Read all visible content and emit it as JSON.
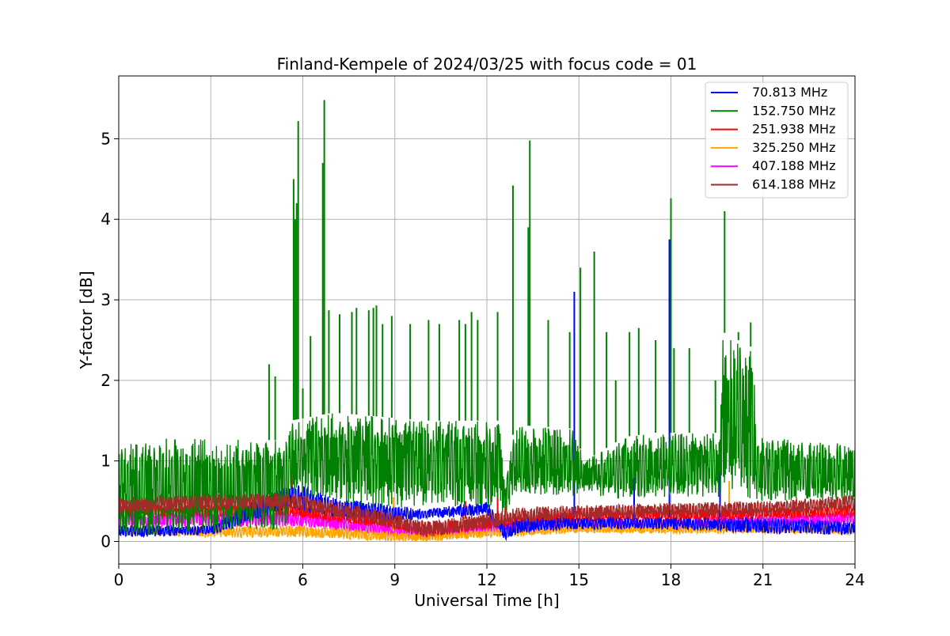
{
  "chart_data": {
    "type": "line",
    "title": "Finland-Kempele of 2024/03/25 with focus code = 01",
    "xlabel": "Universal Time [h]",
    "ylabel": "Y-factor [dB]",
    "xlim": [
      0,
      24
    ],
    "ylim": [
      -0.28,
      5.78
    ],
    "xticks": [
      0,
      3,
      6,
      9,
      12,
      15,
      18,
      21,
      24
    ],
    "yticks": [
      0,
      1,
      2,
      3,
      4,
      5
    ],
    "grid": true,
    "legend_position": "top-right",
    "series": [
      {
        "name": " 70.813 MHz",
        "color": "#0000ff",
        "envelope": [
          [
            0,
            0.05,
            0.2
          ],
          [
            3,
            0.08,
            0.2
          ],
          [
            5.6,
            0.4,
            0.75
          ],
          [
            7,
            0.3,
            0.55
          ],
          [
            9,
            0.25,
            0.45
          ],
          [
            10,
            0.28,
            0.4
          ],
          [
            12,
            0.32,
            0.5
          ],
          [
            12.6,
            0.0,
            0.2
          ],
          [
            13,
            0.1,
            0.3
          ],
          [
            15,
            0.15,
            0.3
          ],
          [
            18,
            0.15,
            0.3
          ],
          [
            21,
            0.1,
            0.3
          ],
          [
            24,
            0.08,
            0.25
          ]
        ],
        "spikes": [
          [
            14.85,
            3.1
          ],
          [
            17.95,
            3.75
          ],
          [
            16.8,
            0.8
          ],
          [
            19.6,
            0.9
          ],
          [
            5.8,
            0.75
          ]
        ]
      },
      {
        "name": "152.750 MHz",
        "color": "#008000",
        "envelope": [
          [
            0,
            0.0,
            1.2
          ],
          [
            2,
            0.1,
            1.3
          ],
          [
            5.5,
            0.15,
            1.25
          ],
          [
            5.6,
            0.6,
            1.5
          ],
          [
            7,
            0.5,
            1.6
          ],
          [
            8.5,
            0.4,
            1.55
          ],
          [
            10,
            0.45,
            1.5
          ],
          [
            12.4,
            0.4,
            1.5
          ],
          [
            12.6,
            0.3,
            0.7
          ],
          [
            12.9,
            0.6,
            1.45
          ],
          [
            14.8,
            0.55,
            1.4
          ],
          [
            15.2,
            0.6,
            1.0
          ],
          [
            16.5,
            0.5,
            1.3
          ],
          [
            17.5,
            0.55,
            1.35
          ],
          [
            19.6,
            0.55,
            1.35
          ],
          [
            19.7,
            0.6,
            2.6
          ],
          [
            20.7,
            0.5,
            2.4
          ],
          [
            20.8,
            0.5,
            1.3
          ],
          [
            24,
            0.5,
            1.2
          ]
        ],
        "spikes": [
          [
            4.9,
            2.2
          ],
          [
            5.1,
            2.05
          ],
          [
            5.7,
            4.5
          ],
          [
            5.75,
            4.0
          ],
          [
            5.85,
            5.22
          ],
          [
            5.8,
            4.2
          ],
          [
            6.0,
            1.9
          ],
          [
            6.25,
            2.55
          ],
          [
            6.7,
            5.48
          ],
          [
            6.65,
            4.7
          ],
          [
            6.85,
            2.87
          ],
          [
            7.2,
            2.82
          ],
          [
            7.6,
            2.85
          ],
          [
            7.75,
            2.9
          ],
          [
            8.15,
            2.87
          ],
          [
            8.3,
            2.9
          ],
          [
            8.4,
            2.93
          ],
          [
            8.6,
            2.7
          ],
          [
            8.9,
            2.8
          ],
          [
            9.5,
            2.7
          ],
          [
            10.1,
            2.75
          ],
          [
            10.45,
            2.7
          ],
          [
            11.1,
            2.75
          ],
          [
            11.3,
            2.7
          ],
          [
            11.5,
            2.85
          ],
          [
            11.7,
            2.75
          ],
          [
            12.35,
            2.85
          ],
          [
            12.85,
            4.42
          ],
          [
            13.4,
            4.98
          ],
          [
            13.35,
            3.9
          ],
          [
            14.0,
            2.75
          ],
          [
            14.7,
            2.6
          ],
          [
            15.05,
            3.4
          ],
          [
            15.5,
            3.6
          ],
          [
            15.9,
            2.6
          ],
          [
            16.2,
            2.0
          ],
          [
            16.65,
            2.6
          ],
          [
            16.95,
            2.65
          ],
          [
            17.5,
            2.5
          ],
          [
            18.0,
            4.26
          ],
          [
            18.1,
            2.4
          ],
          [
            18.6,
            2.4
          ],
          [
            19.45,
            2.0
          ],
          [
            19.75,
            4.1
          ],
          [
            20.2,
            2.6
          ],
          [
            20.6,
            2.72
          ]
        ]
      },
      {
        "name": "251.938 MHz",
        "color": "#ff0000",
        "envelope": [
          [
            0,
            0.3,
            0.45
          ],
          [
            3,
            0.3,
            0.45
          ],
          [
            5.5,
            0.32,
            0.48
          ],
          [
            9,
            0.15,
            0.3
          ],
          [
            10,
            0.05,
            0.25
          ],
          [
            12,
            0.15,
            0.3
          ],
          [
            15,
            0.25,
            0.4
          ],
          [
            18,
            0.25,
            0.4
          ],
          [
            21,
            0.28,
            0.42
          ],
          [
            24,
            0.3,
            0.45
          ]
        ],
        "spikes": [
          [
            5.65,
            1.15
          ],
          [
            12.35,
            0.68
          ],
          [
            12.6,
            0.65
          ],
          [
            11.3,
            0.5
          ]
        ]
      },
      {
        "name": "325.250 MHz",
        "color": "#ffa500",
        "envelope": [
          [
            0,
            0.08,
            0.2
          ],
          [
            3,
            0.05,
            0.18
          ],
          [
            6,
            0.05,
            0.2
          ],
          [
            9,
            0.0,
            0.12
          ],
          [
            10,
            0.0,
            0.1
          ],
          [
            12,
            0.05,
            0.15
          ],
          [
            15,
            0.1,
            0.2
          ],
          [
            18,
            0.1,
            0.2
          ],
          [
            21,
            0.1,
            0.2
          ],
          [
            24,
            0.08,
            0.18
          ]
        ],
        "spikes": [
          [
            8.95,
            0.55
          ],
          [
            19.9,
            0.75
          ]
        ]
      },
      {
        "name": "407.188 MHz",
        "color": "#ff00ff",
        "envelope": [
          [
            0,
            0.15,
            0.35
          ],
          [
            3,
            0.18,
            0.38
          ],
          [
            6,
            0.18,
            0.38
          ],
          [
            9,
            0.05,
            0.22
          ],
          [
            10,
            0.02,
            0.18
          ],
          [
            12,
            0.1,
            0.25
          ],
          [
            15,
            0.15,
            0.3
          ],
          [
            18,
            0.15,
            0.3
          ],
          [
            21,
            0.18,
            0.33
          ],
          [
            24,
            0.2,
            0.38
          ]
        ],
        "spikes": []
      },
      {
        "name": "614.188 MHz",
        "color": "#a52a2a",
        "envelope": [
          [
            0,
            0.35,
            0.55
          ],
          [
            3,
            0.38,
            0.58
          ],
          [
            5.5,
            0.4,
            0.6
          ],
          [
            7,
            0.3,
            0.5
          ],
          [
            9,
            0.15,
            0.35
          ],
          [
            10,
            0.05,
            0.25
          ],
          [
            12,
            0.15,
            0.35
          ],
          [
            13,
            0.22,
            0.42
          ],
          [
            15,
            0.28,
            0.45
          ],
          [
            18,
            0.3,
            0.48
          ],
          [
            21,
            0.32,
            0.5
          ],
          [
            24,
            0.38,
            0.58
          ]
        ],
        "spikes": []
      }
    ]
  }
}
